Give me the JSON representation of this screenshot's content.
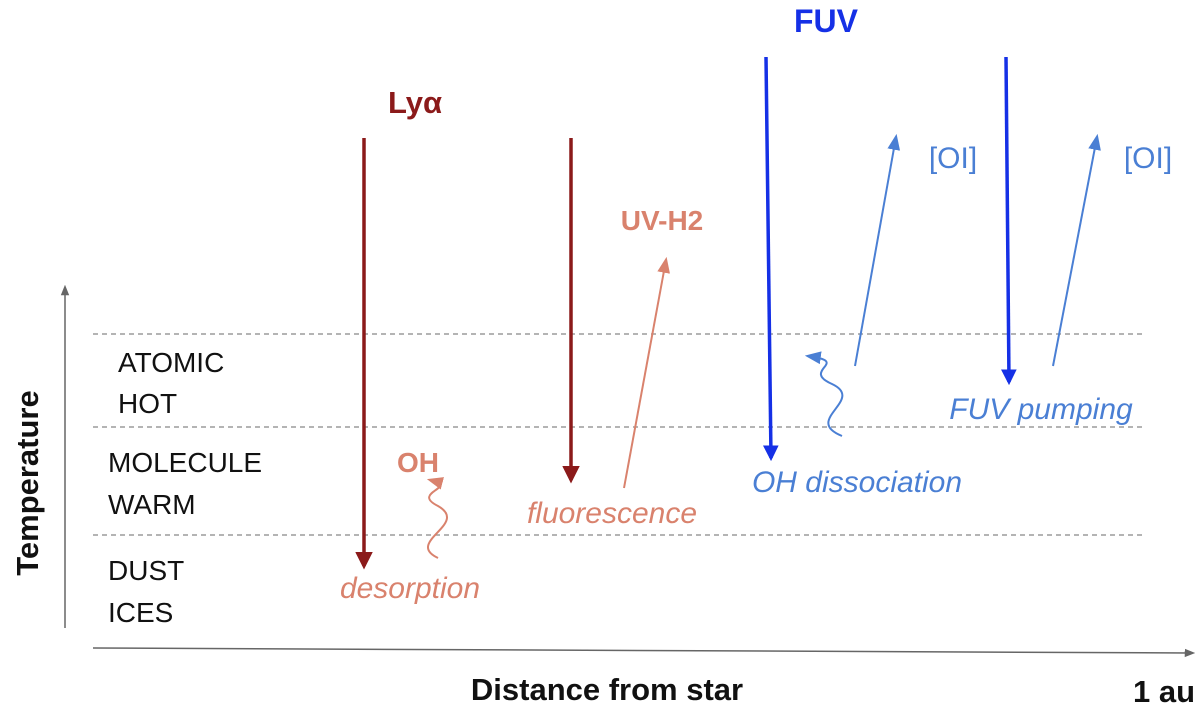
{
  "axes": {
    "y_label": "Temperature",
    "x_label": "Distance from star",
    "x_end_label": "1 au"
  },
  "zones": [
    {
      "line1": "ATOMIC",
      "line2": "HOT"
    },
    {
      "line1": "MOLECULE",
      "line2": "WARM"
    },
    {
      "line1": "DUST",
      "line2": "ICES"
    }
  ],
  "radiation": {
    "lya": "Lyα",
    "fuv": "FUV"
  },
  "processes": {
    "oh": "OH",
    "desorption": "desorption",
    "uv_h2": "UV-H2",
    "fluorescence": "fluorescence",
    "oi_1": "[OI]",
    "oi_2": "[OI]",
    "oh_dissociation": "OH dissociation",
    "fuv_pumping": "FUV pumping"
  },
  "colors": {
    "lya": "#8b1a1a",
    "lya_products": "#d9826d",
    "fuv": "#1530e6",
    "fuv_products": "#4a7fd4",
    "axis": "#666666",
    "divider": "#888888"
  }
}
